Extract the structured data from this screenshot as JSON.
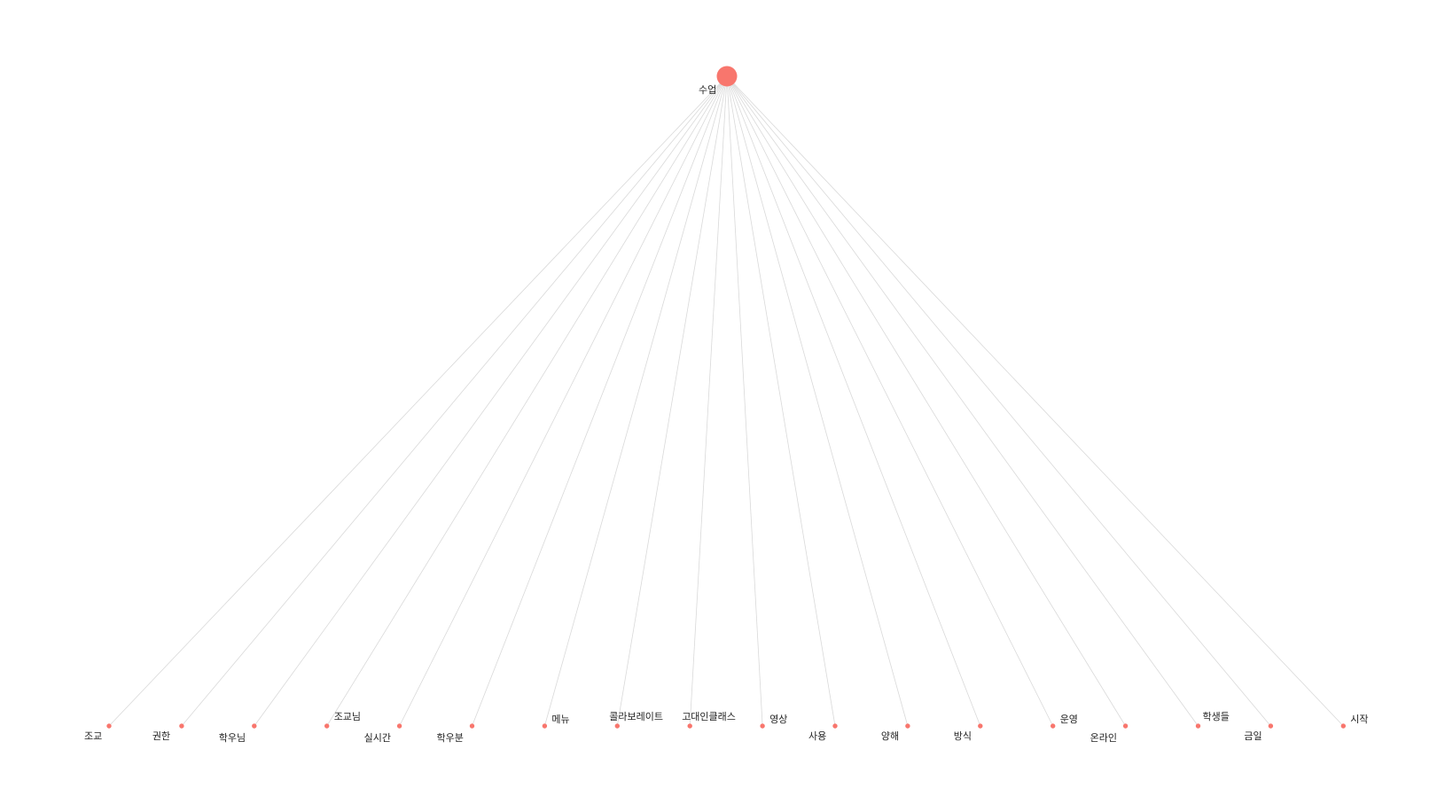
{
  "diagram": {
    "type": "tree",
    "colors": {
      "node": "#f8766d",
      "edge": "#d9d9d9",
      "label": "#222222",
      "background": "#ffffff"
    },
    "root": {
      "label": "수업"
    },
    "leaves": [
      {
        "label": "조교"
      },
      {
        "label": "권한"
      },
      {
        "label": "학우님"
      },
      {
        "label": "조교님"
      },
      {
        "label": "실시간"
      },
      {
        "label": "학우분"
      },
      {
        "label": "메뉴"
      },
      {
        "label": "콜라보레이트"
      },
      {
        "label": "고대인클래스"
      },
      {
        "label": "영상"
      },
      {
        "label": "사용"
      },
      {
        "label": "양해"
      },
      {
        "label": "방식"
      },
      {
        "label": "운영"
      },
      {
        "label": "온라인"
      },
      {
        "label": "학생들"
      },
      {
        "label": "금일"
      },
      {
        "label": "시작"
      }
    ]
  }
}
